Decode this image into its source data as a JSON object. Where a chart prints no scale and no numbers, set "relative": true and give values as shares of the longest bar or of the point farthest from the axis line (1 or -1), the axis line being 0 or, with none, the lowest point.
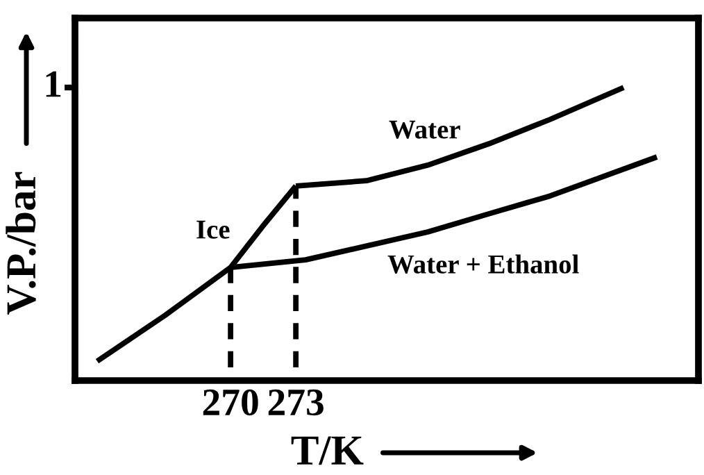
{
  "chart_data": {
    "type": "line",
    "relative": true,
    "xlabel": "T/K",
    "ylabel": "V.P./bar",
    "xlim": [
      262.85,
      291.5
    ],
    "xticks": [
      270,
      273
    ],
    "series": [
      {
        "name": "Ice",
        "color": "#000000",
        "x": [
          263.87,
          267.0,
          270,
          271.47,
          273
        ],
        "values": [
          0.066,
          0.223,
          0.386,
          0.526,
          0.664
        ]
      },
      {
        "name": "Water",
        "color": "#000000",
        "x": [
          273,
          276.25,
          279.06,
          281.87,
          284.68,
          288.06
        ],
        "values": [
          0.664,
          0.682,
          0.735,
          0.808,
          0.891,
          1.0
        ]
      },
      {
        "name": "Water + Ethanol",
        "color": "#000000",
        "x": [
          270,
          273.45,
          279.06,
          281.87,
          284.68,
          289.59
        ],
        "values": [
          0.386,
          0.412,
          0.507,
          0.569,
          0.63,
          0.763
        ]
      }
    ],
    "ref_lines": [
      {
        "axis": "x",
        "value": 270,
        "line_style": "dashed",
        "color": "#000000"
      },
      {
        "axis": "x",
        "value": 273,
        "line_style": "dashed",
        "color": "#000000"
      }
    ],
    "annotations": [
      "1"
    ],
    "grid": false,
    "legend": false,
    "line_style": "solid",
    "marker": "none"
  }
}
